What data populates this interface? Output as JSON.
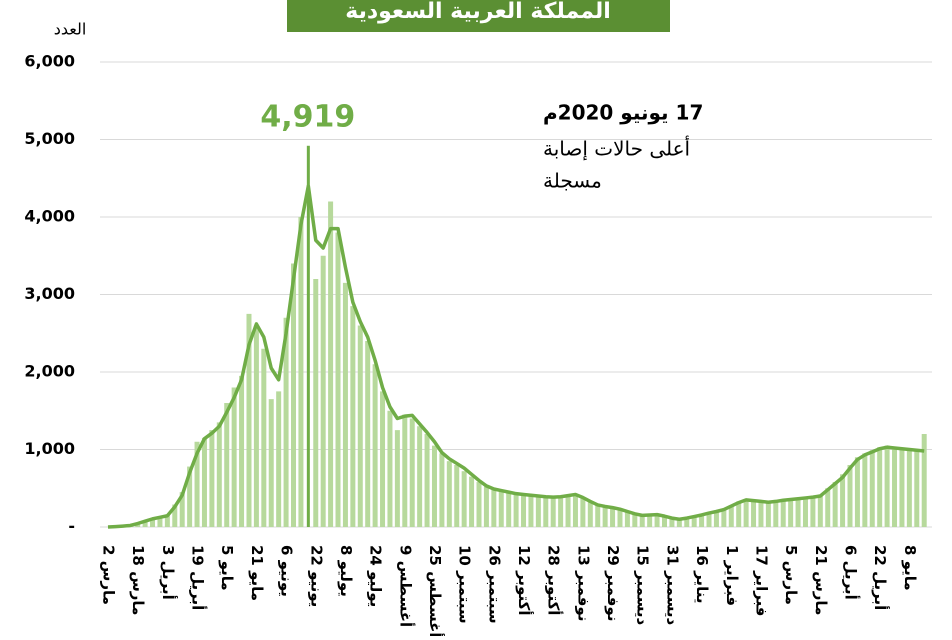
{
  "chart_data": {
    "type": "bar_line",
    "title": "المملكة العربية السعودية",
    "y_label": "العدد",
    "categories": [
      "2 مارس",
      null,
      null,
      null,
      "18 مارس",
      null,
      null,
      null,
      "3 أبريل",
      null,
      null,
      null,
      "19 أبريل",
      null,
      null,
      null,
      "5 مايو",
      null,
      null,
      null,
      "21 مايو",
      null,
      null,
      null,
      "6 يونيو",
      null,
      null,
      null,
      "22 يونيو",
      null,
      null,
      null,
      "8 يوليو",
      null,
      null,
      null,
      "24 يوليو",
      null,
      null,
      null,
      "9 أغسطس",
      null,
      null,
      null,
      "25 أغسطس",
      null,
      null,
      null,
      "10 سبتمبر",
      null,
      null,
      null,
      "26 سبتمبر",
      null,
      null,
      null,
      "12 أكتوبر",
      null,
      null,
      null,
      "28 أكتوبر",
      null,
      null,
      null,
      "13 نوفمبر",
      null,
      null,
      null,
      "29 نوفمبر",
      null,
      null,
      null,
      "15 ديسمبر",
      null,
      null,
      null,
      "31 ديسمبر",
      null,
      null,
      null,
      "16 يناير",
      null,
      null,
      null,
      "1 فبراير",
      null,
      null,
      null,
      "17 فبراير",
      null,
      null,
      null,
      "5 مارس",
      null,
      null,
      null,
      "21 مارس",
      null,
      null,
      null,
      "6 أبريل",
      null,
      null,
      null,
      "22 أبريل",
      null,
      null,
      null,
      "8 مايو",
      null,
      null
    ],
    "series": [
      {
        "kind": "bar",
        "color": "#b7d99c",
        "values": [
          0,
          6,
          15,
          22,
          50,
          80,
          115,
          130,
          160,
          290,
          450,
          780,
          1100,
          1150,
          1250,
          1350,
          1600,
          1800,
          1950,
          2750,
          2600,
          2300,
          1650,
          1750,
          2700,
          3400,
          4000,
          4919,
          3200,
          3500,
          4200,
          3800,
          3150,
          2850,
          2600,
          2400,
          2100,
          1750,
          1500,
          1250,
          1450,
          1400,
          1300,
          1200,
          1050,
          950,
          850,
          800,
          720,
          650,
          580,
          520,
          480,
          460,
          440,
          420,
          410,
          400,
          390,
          380,
          380,
          390,
          410,
          420,
          370,
          320,
          280,
          260,
          250,
          220,
          190,
          165,
          150,
          160,
          160,
          135,
          110,
          95,
          115,
          140,
          160,
          190,
          210,
          230,
          280,
          330,
          360,
          340,
          330,
          315,
          330,
          350,
          360,
          370,
          380,
          390,
          420,
          500,
          580,
          680,
          800,
          900,
          950,
          990,
          1030,
          1050,
          1020,
          1000,
          1000,
          990,
          1200
        ]
      },
      {
        "kind": "line",
        "color": "#70ad47",
        "values": [
          0,
          5,
          12,
          20,
          45,
          75,
          105,
          125,
          145,
          260,
          410,
          700,
          950,
          1140,
          1210,
          1300,
          1480,
          1670,
          1900,
          2350,
          2620,
          2450,
          2050,
          1900,
          2500,
          3200,
          3900,
          4400,
          3700,
          3600,
          3850,
          3850,
          3350,
          2900,
          2650,
          2450,
          2150,
          1800,
          1550,
          1400,
          1430,
          1440,
          1330,
          1220,
          1100,
          960,
          880,
          820,
          760,
          680,
          600,
          530,
          490,
          470,
          450,
          430,
          420,
          410,
          400,
          390,
          385,
          390,
          405,
          420,
          380,
          330,
          285,
          265,
          250,
          230,
          200,
          170,
          150,
          155,
          160,
          140,
          115,
          100,
          115,
          135,
          155,
          180,
          200,
          225,
          270,
          315,
          350,
          340,
          330,
          320,
          330,
          345,
          355,
          365,
          375,
          385,
          400,
          480,
          560,
          640,
          760,
          870,
          930,
          970,
          1010,
          1030,
          1020,
          1010,
          1000,
          990,
          980
        ]
      }
    ],
    "annotation": {
      "value_label": "4,919",
      "date": "17 يونيو 2020م",
      "lines": [
        "أعلى حالات إصابة",
        "مسجلة"
      ]
    },
    "ylim": [
      0,
      6000
    ],
    "yticks": [
      {
        "value": 0,
        "label": "-"
      },
      {
        "value": 1000,
        "label": "1,000"
      },
      {
        "value": 2000,
        "label": "2,000"
      },
      {
        "value": 3000,
        "label": "3,000"
      },
      {
        "value": 4000,
        "label": "4,000"
      },
      {
        "value": 5000,
        "label": "5,000"
      },
      {
        "value": 6000,
        "label": "6,000"
      }
    ],
    "grid": true
  }
}
